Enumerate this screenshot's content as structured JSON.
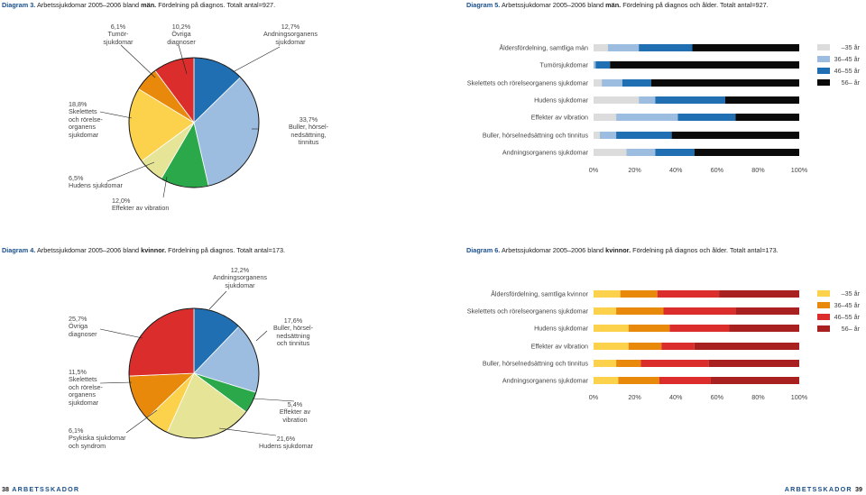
{
  "page": {
    "footer_left_number": "38",
    "footer_left_brand": "ARBETSSKADOR",
    "footer_right_brand": "ARBETSSKADOR",
    "footer_right_number": "39"
  },
  "chart_data": [
    {
      "id": "diagram3",
      "type": "pie",
      "title_number": "Diagram 3.",
      "title_pre": "Arbetssjukdomar 2005–2006 bland",
      "title_gender": "män.",
      "title_post": "Fördelning på diagnos. Totalt antal=927.",
      "slices": [
        {
          "value": 12.7,
          "pct": "12,7%",
          "label": "Andningsorganens sjukdomar",
          "color": "#1f6fb2"
        },
        {
          "value": 33.7,
          "pct": "33,7%",
          "label": "Buller, hörselnedsättning, tinnitus",
          "color": "#9dbde0"
        },
        {
          "value": 12.0,
          "pct": "12,0%",
          "label": "Effekter av vibration",
          "color": "#2aa84a"
        },
        {
          "value": 6.5,
          "pct": "6,5%",
          "label": "Hudens sjukdomar",
          "color": "#e6e496"
        },
        {
          "value": 18.8,
          "pct": "18,8%",
          "label": "Skelettets och rörelseorganens sjukdomar",
          "color": "#fcd24c"
        },
        {
          "value": 6.1,
          "pct": "6,1%",
          "label": "Tumörsjukdomar",
          "color": "#e8890b"
        },
        {
          "value": 10.2,
          "pct": "10,2%",
          "label": "Övriga diagnoser",
          "color": "#dc2d2d"
        }
      ],
      "label_lines": {
        "a": [
          "12,7%",
          "Andningsorganens",
          "sjukdomar"
        ],
        "b": [
          "33,7%",
          "Buller, hörsel-",
          "nedsättning,",
          "tinnitus"
        ],
        "c": [
          "12,0%",
          "Effekter av vibration"
        ],
        "d": [
          "6,5%",
          "Hudens sjukdomar"
        ],
        "e": [
          "18,8%",
          "Skelettets",
          "och rörelse-",
          "organens",
          "sjukdomar"
        ],
        "f": [
          "6,1%",
          "Tumör-",
          "sjukdomar"
        ],
        "g": [
          "10,2%",
          "Övriga",
          "diagnoser"
        ]
      }
    },
    {
      "id": "diagram4",
      "type": "pie",
      "title_number": "Diagram 4.",
      "title_pre": "Arbetssjukdomar 2005–2006 bland",
      "title_gender": "kvinnor.",
      "title_post": "Fördelning på diagnos. Totalt antal=173.",
      "slices": [
        {
          "value": 12.2,
          "pct": "12,2%",
          "label": "Andningsorganens sjukdomar",
          "color": "#1f6fb2"
        },
        {
          "value": 17.6,
          "pct": "17,6%",
          "label": "Buller, hörselnedsättning och tinnitus",
          "color": "#9dbde0"
        },
        {
          "value": 5.4,
          "pct": "5,4%",
          "label": "Effekter av vibration",
          "color": "#2aa84a"
        },
        {
          "value": 21.6,
          "pct": "21,6%",
          "label": "Hudens sjukdomar",
          "color": "#e6e496"
        },
        {
          "value": 6.1,
          "pct": "6,1%",
          "label": "Psykiska sjukdomar och syndrom",
          "color": "#fcd24c"
        },
        {
          "value": 11.5,
          "pct": "11,5%",
          "label": "Skelettets och rörelseorganens sjukdomar",
          "color": "#e8890b"
        },
        {
          "value": 25.7,
          "pct": "25,7%",
          "label": "Övriga diagnoser",
          "color": "#dc2d2d"
        }
      ],
      "label_lines": {
        "a": [
          "12,2%",
          "Andningsorganens",
          "sjukdomar"
        ],
        "b": [
          "17,6%",
          "Buller, hörsel-",
          "nedsättning",
          "och tinnitus"
        ],
        "c": [
          "5,4%",
          "Effekter av",
          "vibration"
        ],
        "d": [
          "21,6%",
          "Hudens sjukdomar"
        ],
        "e": [
          "6,1%",
          "Psykiska sjukdomar",
          "och syndrom"
        ],
        "f": [
          "11,5%",
          "Skelettets",
          "och rörelse-",
          "organens",
          "sjukdomar"
        ],
        "g": [
          "25,7%",
          "Övriga",
          "diagnoser"
        ]
      }
    },
    {
      "id": "diagram5",
      "type": "bar",
      "orientation": "horizontal",
      "stacked": true,
      "title_number": "Diagram 5.",
      "title_pre": "Arbetssjukdomar 2005–2006 bland",
      "title_gender": "män.",
      "title_post": "Fördelning på diagnos och ålder. Totalt antal=927.",
      "categories": [
        "Åldersfördelning, samtliga män",
        "Tumörsjukdomar",
        "Skelettets och rörelseorganens sjukdomar",
        "Hudens sjukdomar",
        "Effekter av vibration",
        "Buller, hörselnedsättning och tinnitus",
        "Andningsorganens sjukdomar"
      ],
      "series": [
        {
          "name": "–35 år",
          "color": "#dcdcdc",
          "values": [
            7,
            0,
            4,
            22,
            11,
            3,
            16
          ]
        },
        {
          "name": "36–45 år",
          "color": "#9dbde0",
          "values": [
            15,
            1,
            10,
            8,
            30,
            8,
            14
          ]
        },
        {
          "name": "46–55 år",
          "color": "#1f6fb2",
          "values": [
            26,
            7,
            14,
            34,
            28,
            27,
            19
          ]
        },
        {
          "name": "56– år",
          "color": "#0a0a0a",
          "values": [
            52,
            92,
            72,
            36,
            31,
            62,
            51
          ]
        }
      ],
      "x_ticks": [
        "0%",
        "20%",
        "40%",
        "60%",
        "80%",
        "100%"
      ],
      "xlim": [
        0,
        100
      ]
    },
    {
      "id": "diagram6",
      "type": "bar",
      "orientation": "horizontal",
      "stacked": true,
      "title_number": "Diagram 6.",
      "title_pre": "Arbetssjukdomar 2005–2006 bland",
      "title_gender": "kvinnor.",
      "title_post": "Fördelning på diagnos och ålder. Totalt antal=173.",
      "categories": [
        "Åldersfördelning, samtliga kvinnor",
        "Skelettets och rörelseorganens sjukdomar",
        "Hudens sjukdomar",
        "Effekter av vibration",
        "Buller, hörselnedsättning och tinnitus",
        "Andningsorganens sjukdomar"
      ],
      "series": [
        {
          "name": "–35 år",
          "color": "#fcd24c",
          "values": [
            13,
            11,
            17,
            17,
            11,
            12
          ]
        },
        {
          "name": "36–45 år",
          "color": "#e8890b",
          "values": [
            18,
            23,
            20,
            16,
            12,
            20
          ]
        },
        {
          "name": "46–55 år",
          "color": "#dc2d2d",
          "values": [
            30,
            35,
            29,
            16,
            33,
            25
          ]
        },
        {
          "name": "56– år",
          "color": "#a8201f",
          "values": [
            39,
            31,
            34,
            51,
            44,
            43
          ]
        }
      ],
      "x_ticks": [
        "0%",
        "20%",
        "40%",
        "60%",
        "80%",
        "100%"
      ],
      "xlim": [
        0,
        100
      ]
    }
  ]
}
